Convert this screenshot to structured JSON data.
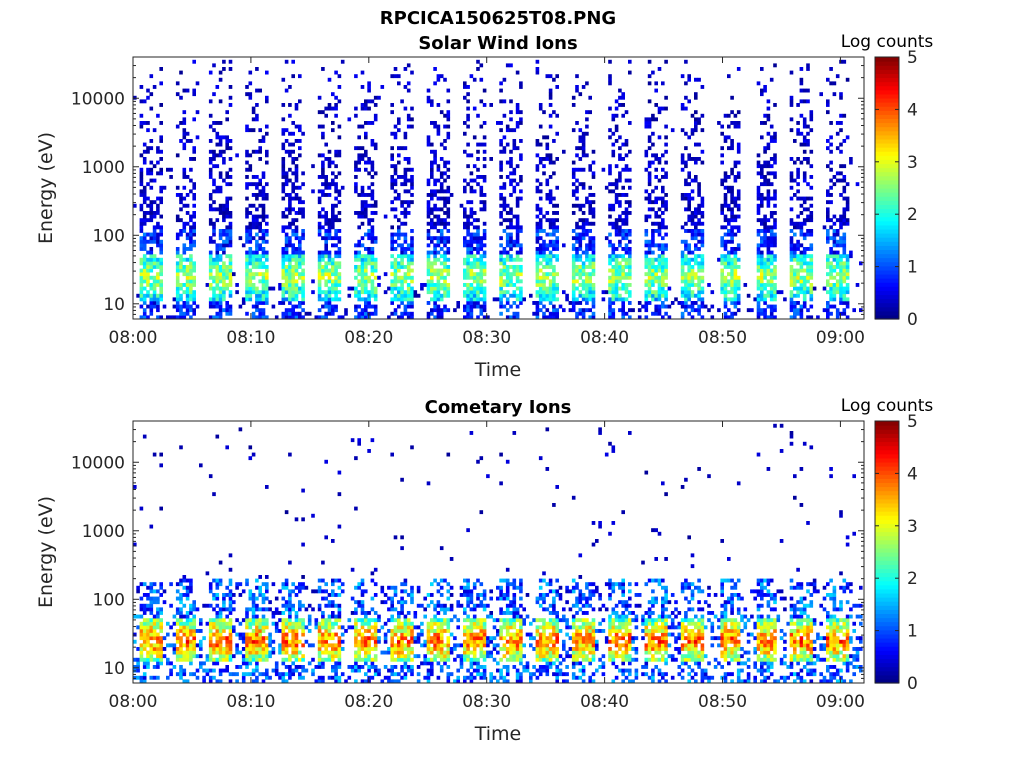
{
  "figure": {
    "title": "RPCICA150625T08.PNG"
  },
  "chart_data": [
    {
      "type": "heatmap",
      "title": "Solar Wind Ions",
      "xlabel": "Time",
      "ylabel": "Energy (eV)",
      "x_ticks": [
        "08:00",
        "08:10",
        "08:20",
        "08:30",
        "08:40",
        "08:50",
        "09:00"
      ],
      "x_range": [
        "08:00",
        "09:02"
      ],
      "y_scale": "log",
      "y_ticks": [
        10,
        100,
        1000,
        10000
      ],
      "y_range": [
        6,
        40000
      ],
      "colorbar": {
        "label": "Log counts",
        "range": [
          0,
          5
        ],
        "ticks": [
          0,
          1,
          2,
          3,
          4,
          5
        ],
        "colormap": "jet"
      },
      "sweep_start_minutes": [
        0.5,
        3.5,
        6.5,
        9.5,
        12.7,
        15.8,
        18.8,
        21.8,
        25.0,
        28.0,
        31.2,
        34.2,
        37.3,
        40.4,
        43.5,
        46.6,
        49.7,
        52.8,
        55.8,
        58.9
      ],
      "peak_energy_eV": 25,
      "peak_log_counts": 2.7
    },
    {
      "type": "heatmap",
      "title": "Cometary Ions",
      "xlabel": "Time",
      "ylabel": "Energy (eV)",
      "x_ticks": [
        "08:00",
        "08:10",
        "08:20",
        "08:30",
        "08:40",
        "08:50",
        "09:00"
      ],
      "x_range": [
        "08:00",
        "09:02"
      ],
      "y_scale": "log",
      "y_ticks": [
        10,
        100,
        1000,
        10000
      ],
      "y_range": [
        6,
        40000
      ],
      "colorbar": {
        "label": "Log counts",
        "range": [
          0,
          5
        ],
        "ticks": [
          0,
          1,
          2,
          3,
          4,
          5
        ],
        "colormap": "jet"
      },
      "sweep_start_minutes": [
        0.5,
        3.5,
        6.5,
        9.5,
        12.7,
        15.8,
        18.8,
        21.8,
        25.0,
        28.0,
        31.2,
        34.2,
        37.3,
        40.4,
        43.5,
        46.6,
        49.7,
        52.8,
        55.8,
        58.9
      ],
      "peak_energy_eV": 25,
      "peak_log_counts": 3.9
    }
  ]
}
